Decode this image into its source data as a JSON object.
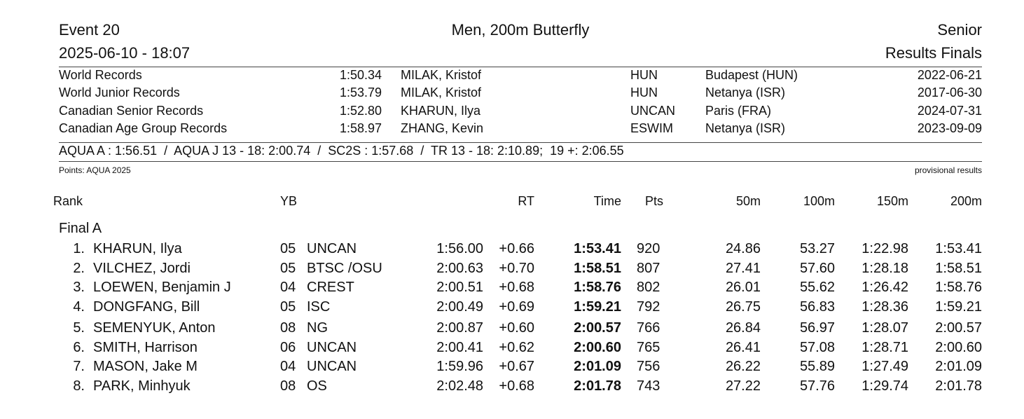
{
  "header": {
    "event": "Event 20",
    "title": "Men, 200m Butterfly",
    "category": "Senior",
    "datetime": "2025-06-10 - 18:07",
    "phase": "Results Finals"
  },
  "records": [
    [
      "World Records",
      "1:50.34",
      "MILAK, Kristof",
      "HUN",
      "Budapest (HUN)",
      "2022-06-21"
    ],
    [
      "World Junior Records",
      "1:53.79",
      "MILAK, Kristof",
      "HUN",
      "Netanya (ISR)",
      "2017-06-30"
    ],
    [
      "Canadian Senior Records",
      "1:52.80",
      "KHARUN, Ilya",
      "UNCAN",
      "Paris (FRA)",
      "2024-07-31"
    ],
    [
      "Canadian Age Group Records",
      "1:58.97",
      "ZHANG, Kevin",
      "ESWIM",
      "Netanya (ISR)",
      "2023-09-09"
    ]
  ],
  "standards": "AQUA A : 1:56.51  /  AQUA J 13 - 18: 2:00.74  /  SC2S : 1:57.68  /  TR 13 - 18: 2:10.89;  19 +: 2:06.55",
  "points_note": "Points: AQUA 2025",
  "status": "provisional results",
  "columns": [
    "Rank",
    "YB",
    "RT",
    "Time",
    "Pts",
    "50m",
    "100m",
    "150m",
    "200m"
  ],
  "section": "Final A",
  "results": [
    [
      "1.",
      "KHARUN, Ilya",
      "05",
      "UNCAN",
      "1:56.00",
      "+0.66",
      "1:53.41",
      "920",
      "24.86",
      "53.27",
      "1:22.98",
      "1:53.41"
    ],
    [
      "2.",
      "VILCHEZ, Jordi",
      "05",
      "BTSC /OSU",
      "2:00.63",
      "+0.70",
      "1:58.51",
      "807",
      "27.41",
      "57.60",
      "1:28.18",
      "1:58.51"
    ],
    [
      "3.",
      "LOEWEN, Benjamin J",
      "04",
      "CREST",
      "2:00.51",
      "+0.68",
      "1:58.76",
      "802",
      "26.01",
      "55.62",
      "1:26.42",
      "1:58.76"
    ],
    [
      "4.",
      "DONGFANG, Bill",
      "05",
      "ISC",
      "2:00.49",
      "+0.69",
      "1:59.21",
      "792",
      "26.75",
      "56.83",
      "1:28.36",
      "1:59.21"
    ],
    [
      "5.",
      "SEMENYUK, Anton",
      "08",
      "NG",
      "2:00.87",
      "+0.60",
      "2:00.57",
      "766",
      "26.84",
      "56.97",
      "1:28.07",
      "2:00.57"
    ],
    [
      "6.",
      "SMITH, Harrison",
      "06",
      "UNCAN",
      "2:00.41",
      "+0.62",
      "2:00.60",
      "765",
      "26.41",
      "57.08",
      "1:28.71",
      "2:00.60"
    ],
    [
      "7.",
      "MASON, Jake M",
      "04",
      "UNCAN",
      "1:59.96",
      "+0.67",
      "2:01.09",
      "756",
      "26.22",
      "55.89",
      "1:27.49",
      "2:01.09"
    ],
    [
      "8.",
      "PARK, Minhyuk",
      "08",
      "OS",
      "2:02.48",
      "+0.68",
      "2:01.78",
      "743",
      "27.22",
      "57.76",
      "1:29.74",
      "2:01.78"
    ]
  ]
}
